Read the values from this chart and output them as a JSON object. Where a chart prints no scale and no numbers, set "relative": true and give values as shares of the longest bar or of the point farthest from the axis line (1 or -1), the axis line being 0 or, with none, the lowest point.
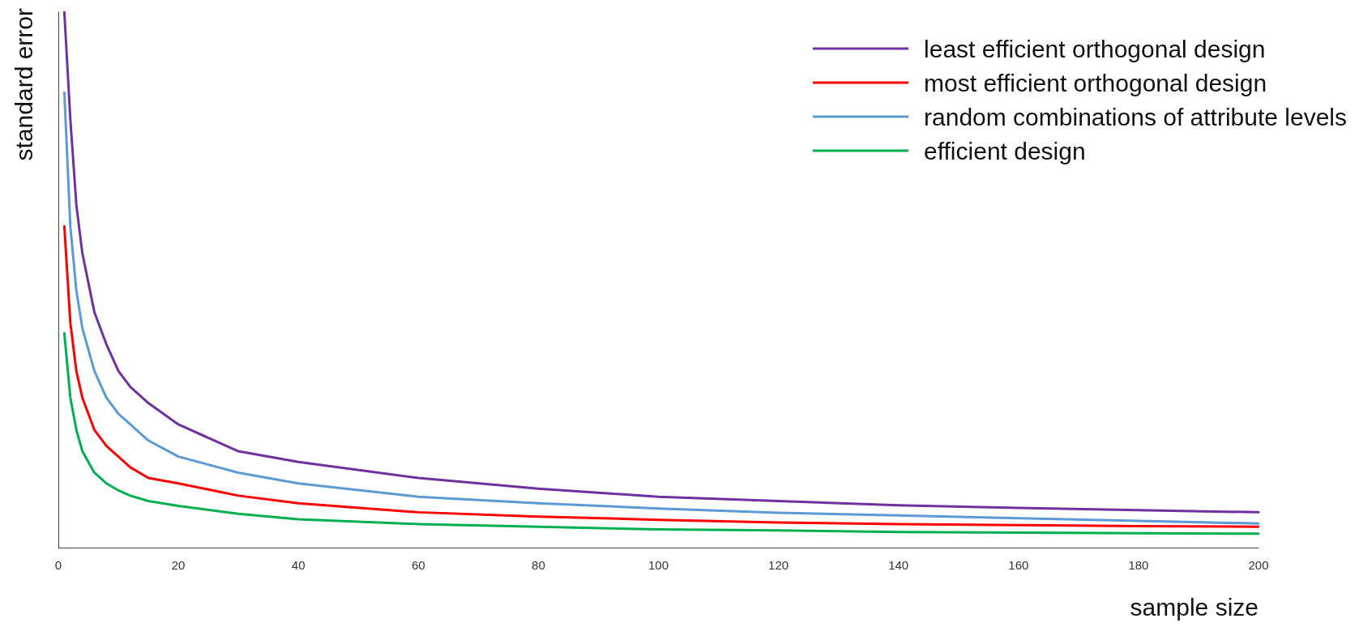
{
  "chart_data": {
    "type": "line",
    "relative": true,
    "xlabel": "sample size",
    "ylabel": "standard error",
    "x": [
      1,
      2,
      3,
      4,
      6,
      8,
      10,
      12,
      15,
      20,
      30,
      40,
      60,
      80,
      100,
      120,
      140,
      160,
      180,
      200
    ],
    "xlim": [
      0,
      200
    ],
    "xticks": [
      0,
      20,
      40,
      60,
      80,
      100,
      120,
      140,
      160,
      180,
      200
    ],
    "series": [
      {
        "name": "least efficient orthogonal design",
        "color": "#7030a0",
        "values": [
          1,
          0.8,
          0.64,
          0.55,
          0.44,
          0.38,
          0.33,
          0.3,
          0.27,
          0.23,
          0.18,
          0.16,
          0.13,
          0.11,
          0.095,
          0.087,
          0.079,
          0.074,
          0.07,
          0.066
        ]
      },
      {
        "name": "most efficient orthogonal design",
        "color": "#ff0000",
        "values": [
          0.6,
          0.42,
          0.33,
          0.28,
          0.22,
          0.19,
          0.17,
          0.15,
          0.13,
          0.12,
          0.097,
          0.083,
          0.066,
          0.058,
          0.052,
          0.047,
          0.044,
          0.042,
          0.04,
          0.039
        ]
      },
      {
        "name": "random combinations of attribute levels",
        "color": "#5b9bd5",
        "values": [
          0.85,
          0.6,
          0.48,
          0.41,
          0.33,
          0.28,
          0.25,
          0.23,
          0.2,
          0.17,
          0.14,
          0.12,
          0.095,
          0.083,
          0.073,
          0.065,
          0.06,
          0.055,
          0.05,
          0.045
        ]
      },
      {
        "name": "efficient design",
        "color": "#00b050",
        "values": [
          0.4,
          0.28,
          0.22,
          0.18,
          0.14,
          0.12,
          0.107,
          0.097,
          0.087,
          0.078,
          0.063,
          0.053,
          0.044,
          0.039,
          0.034,
          0.032,
          0.029,
          0.028,
          0.027,
          0.026
        ]
      }
    ],
    "legend": "top right",
    "grid": false,
    "marker": "none",
    "line_style": "solid"
  }
}
